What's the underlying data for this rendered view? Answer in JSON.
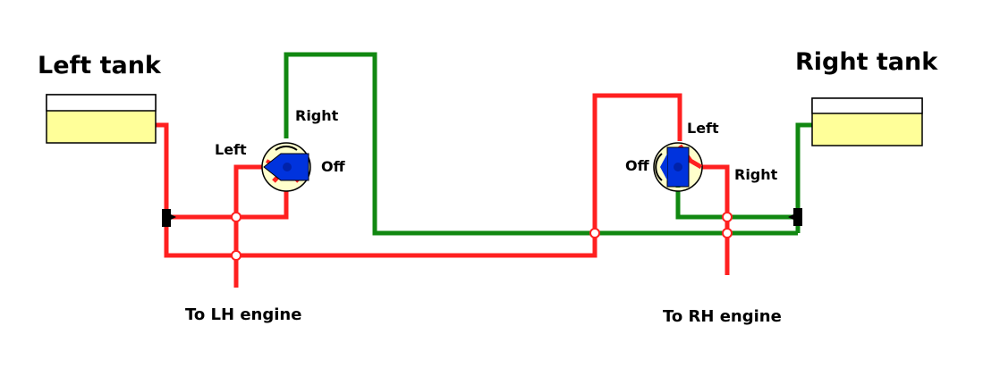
{
  "labels": {
    "left_tank": "Left tank",
    "right_tank": "Right tank",
    "to_lh_engine": "To LH engine",
    "to_rh_engine": "To RH engine",
    "left_valve": {
      "left": "Left",
      "right": "Right",
      "off": "Off"
    },
    "right_valve": {
      "left": "Left",
      "right": "Right",
      "off": "Off"
    }
  },
  "colors": {
    "left_fuel_line": "#ff2020",
    "right_fuel_line": "#118811",
    "tank_fill": "#ffff99",
    "valve_body": "#ffffcc",
    "valve_handle": "#0033dd",
    "check_valve": "#000000"
  }
}
